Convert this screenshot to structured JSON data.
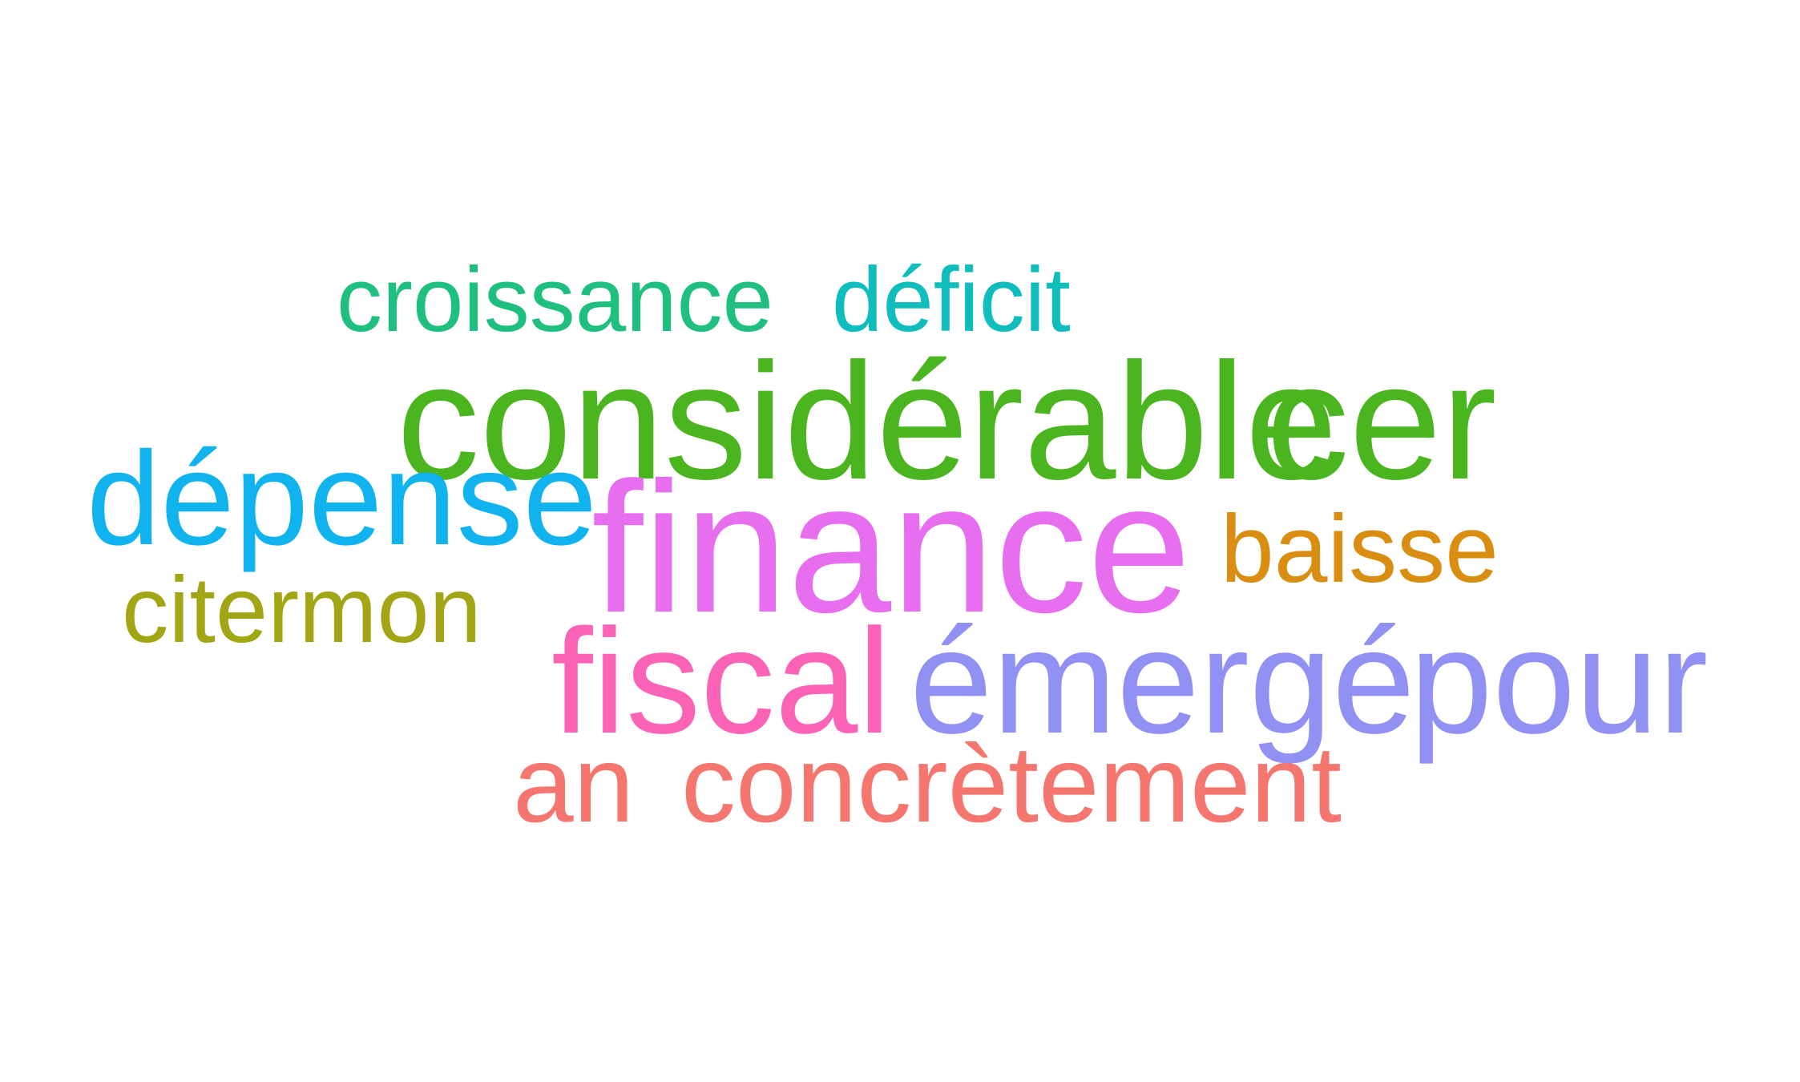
{
  "words": [
    {
      "id": "croissance",
      "text": "croissance",
      "color": "#1ebf7f"
    },
    {
      "id": "deficit",
      "text": "déficit",
      "color": "#10bdbd"
    },
    {
      "id": "considerable",
      "text": "considérable",
      "color": "#4ab51f"
    },
    {
      "id": "cer",
      "text": "cer",
      "color": "#4ab51f"
    },
    {
      "id": "depense",
      "text": "dépense",
      "color": "#11b3ef"
    },
    {
      "id": "finance",
      "text": "finance",
      "color": "#e86ef0"
    },
    {
      "id": "baisse",
      "text": "baisse",
      "color": "#d98e12"
    },
    {
      "id": "citermon",
      "text": "citermon",
      "color": "#a3a614"
    },
    {
      "id": "fiscal",
      "text": "fiscal",
      "color": "#fb64b6"
    },
    {
      "id": "emerge",
      "text": "émergé",
      "color": "#9191f4"
    },
    {
      "id": "pour",
      "text": "pour",
      "color": "#9191f4"
    },
    {
      "id": "an",
      "text": "an",
      "color": "#f4766e"
    },
    {
      "id": "concretement",
      "text": "concrètement",
      "color": "#f4766e"
    }
  ]
}
